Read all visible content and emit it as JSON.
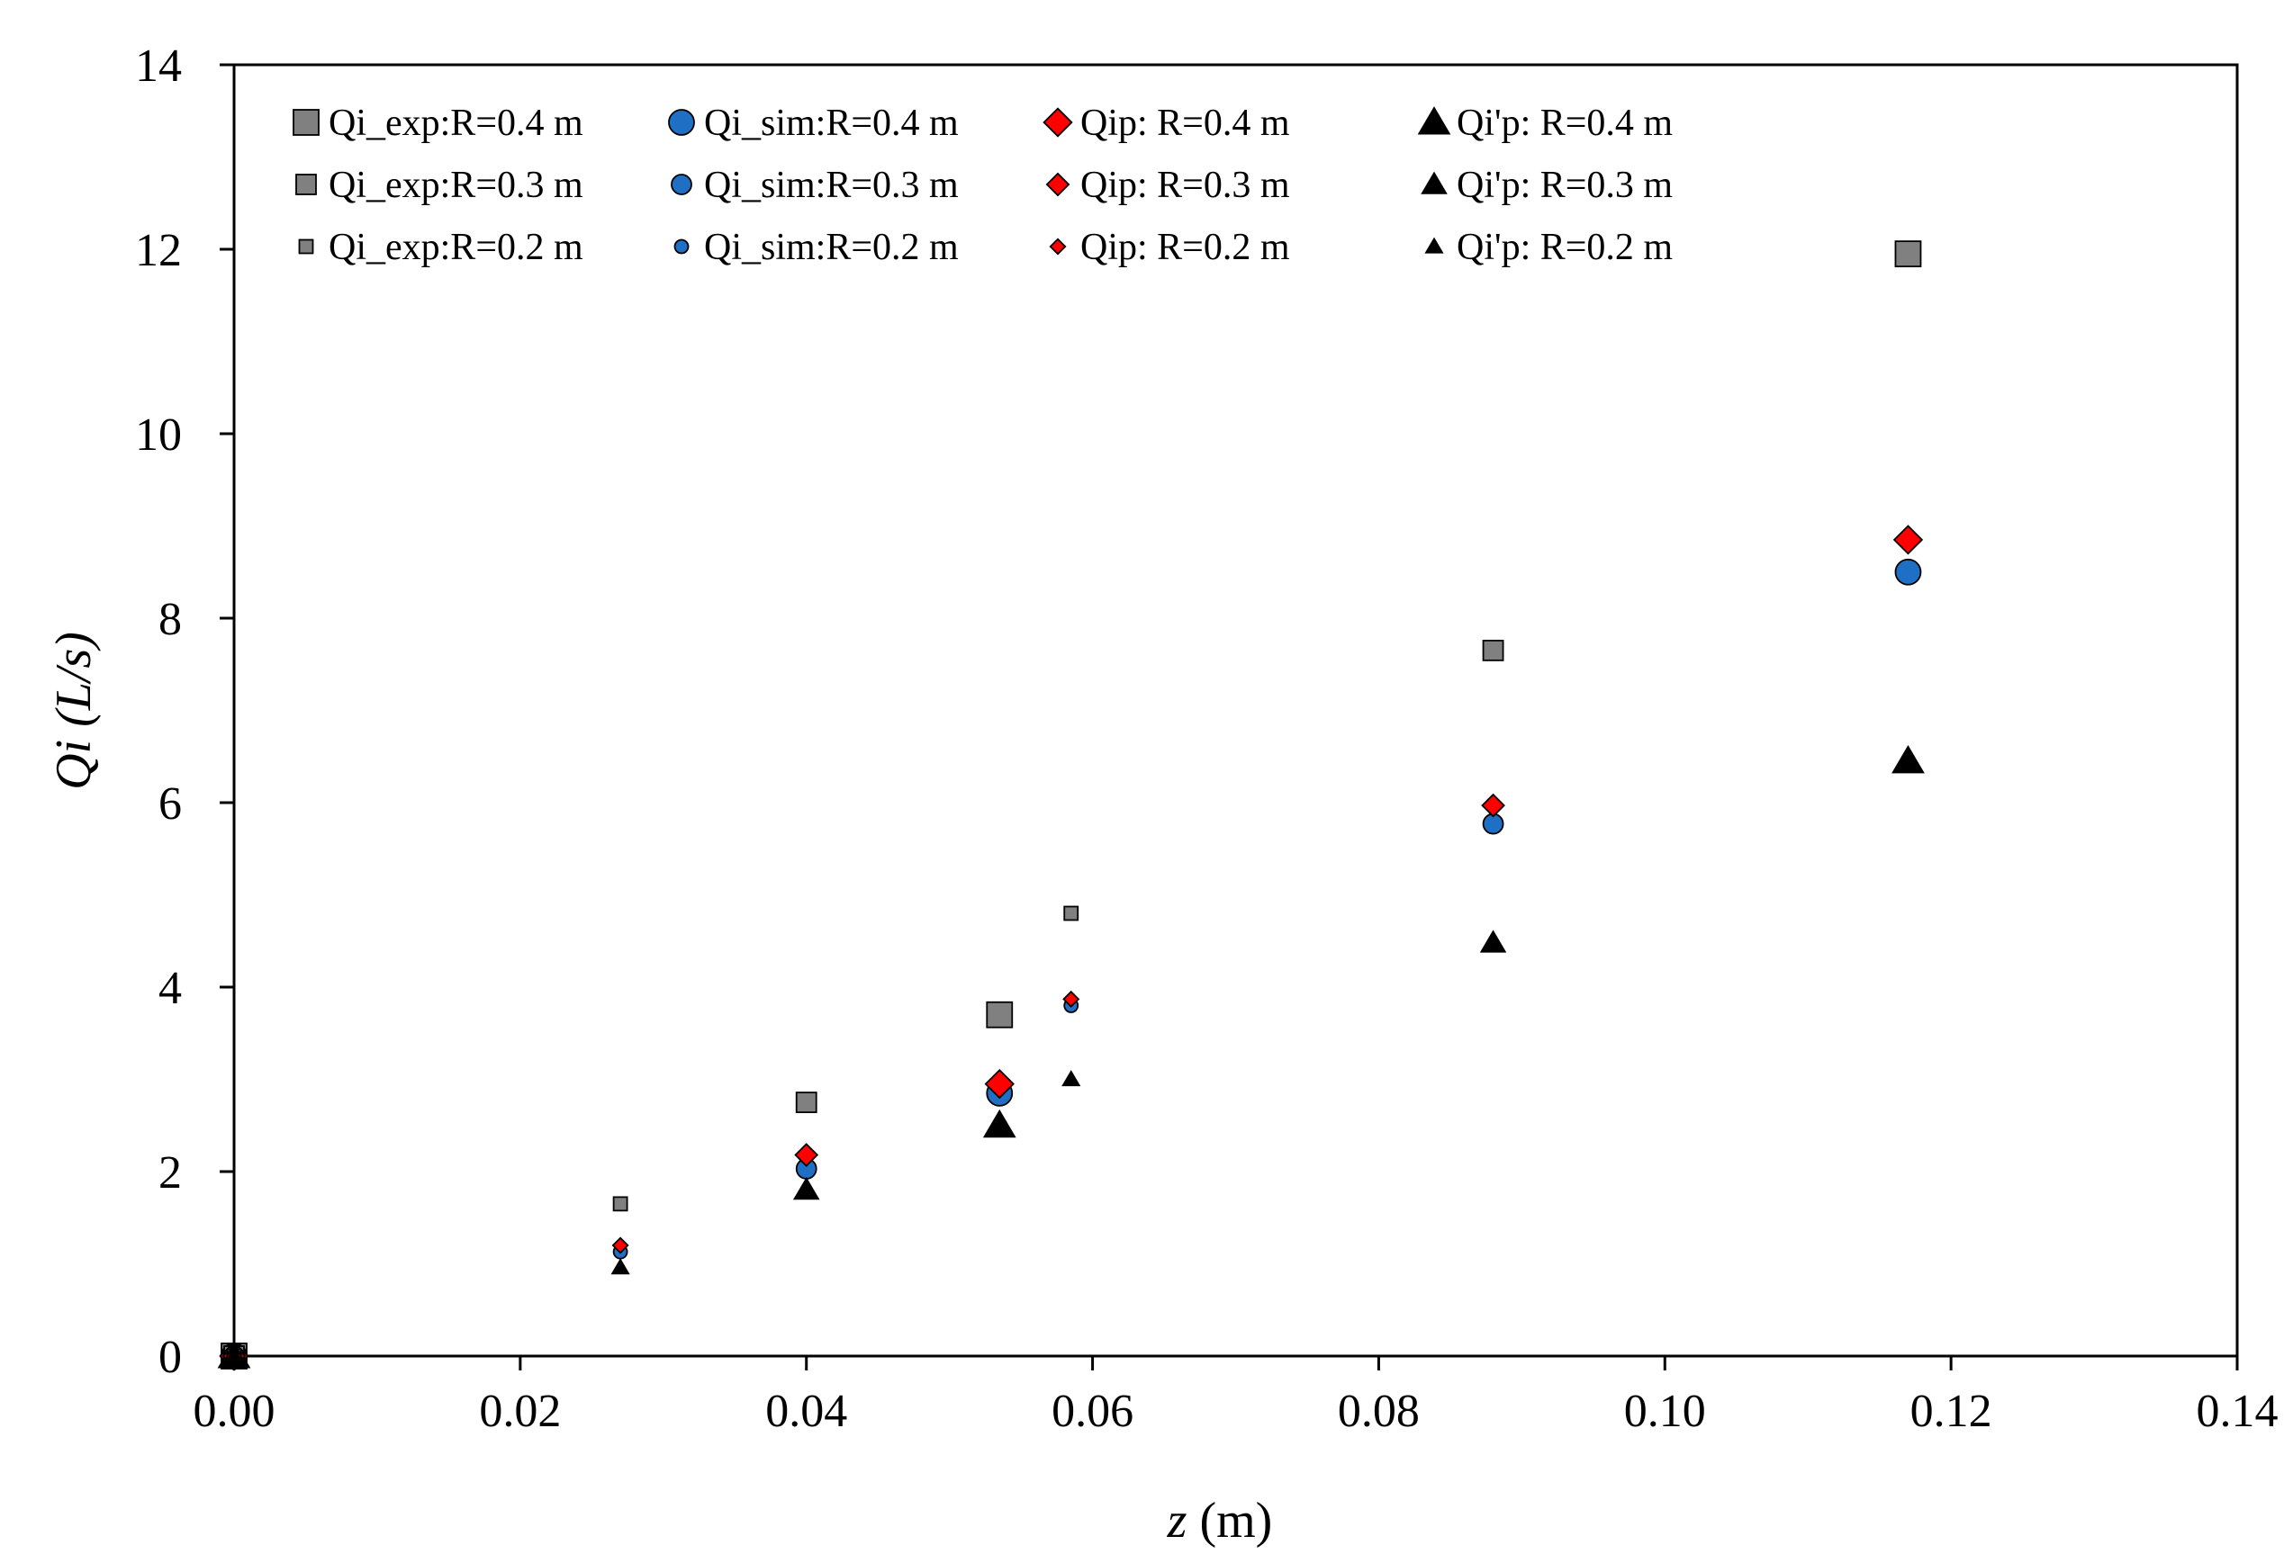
{
  "chart_data": {
    "type": "scatter",
    "title": "",
    "xlabel_main": "z",
    "xlabel_unit": " (m)",
    "ylabel_main": "Qi",
    "ylabel_unit": " (L/s)",
    "xlim": [
      0,
      0.14
    ],
    "ylim": [
      0,
      14
    ],
    "xticks": [
      0,
      0.02,
      0.04,
      0.06,
      0.08,
      0.1,
      0.12,
      0.14
    ],
    "xtick_labels": [
      "0.00",
      "0.02",
      "0.04",
      "0.06",
      "0.08",
      "0.10",
      "0.12",
      "0.14"
    ],
    "yticks": [
      0,
      2,
      4,
      6,
      8,
      10,
      12,
      14
    ],
    "ytick_labels": [
      "0",
      "2",
      "4",
      "6",
      "8",
      "10",
      "12",
      "14"
    ],
    "grid": false,
    "legend_position": "top-left",
    "colors": {
      "exp": "#808080",
      "sim": "#1f6fc5",
      "ip": "#ff0000",
      "pp": "#000000",
      "stroke": "#000000"
    },
    "series": [
      {
        "name": "Qi_exp:R=0.4 m",
        "marker": "square",
        "size": "large",
        "color": "#808080",
        "points": [
          [
            0,
            0
          ],
          [
            0.0535,
            3.7
          ],
          [
            0.117,
            11.95
          ]
        ]
      },
      {
        "name": "Qi_sim:R=0.4 m",
        "marker": "circle",
        "size": "large",
        "color": "#1f6fc5",
        "points": [
          [
            0,
            0
          ],
          [
            0.0535,
            2.85
          ],
          [
            0.117,
            8.5
          ]
        ]
      },
      {
        "name": "Qip: R=0.4 m",
        "marker": "diamond",
        "size": "large",
        "color": "#ff0000",
        "points": [
          [
            0,
            0
          ],
          [
            0.0535,
            2.95
          ],
          [
            0.117,
            8.85
          ]
        ]
      },
      {
        "name": "Qi'p: R=0.4 m",
        "marker": "triangle",
        "size": "large",
        "color": "#000000",
        "points": [
          [
            0,
            0
          ],
          [
            0.0535,
            2.5
          ],
          [
            0.117,
            6.45
          ]
        ]
      },
      {
        "name": "Qi_exp:R=0.3 m",
        "marker": "square",
        "size": "medium",
        "color": "#808080",
        "points": [
          [
            0,
            0
          ],
          [
            0.04,
            2.75
          ],
          [
            0.088,
            7.65
          ]
        ]
      },
      {
        "name": "Qi_sim:R=0.3 m",
        "marker": "circle",
        "size": "medium",
        "color": "#1f6fc5",
        "points": [
          [
            0,
            0
          ],
          [
            0.04,
            2.03
          ],
          [
            0.088,
            5.77
          ]
        ]
      },
      {
        "name": "Qip: R=0.3 m",
        "marker": "diamond",
        "size": "medium",
        "color": "#ff0000",
        "points": [
          [
            0,
            0
          ],
          [
            0.04,
            2.18
          ],
          [
            0.088,
            5.97
          ]
        ]
      },
      {
        "name": "Qi'p: R=0.3 m",
        "marker": "triangle",
        "size": "medium",
        "color": "#000000",
        "points": [
          [
            0,
            0
          ],
          [
            0.04,
            1.8
          ],
          [
            0.088,
            4.48
          ]
        ]
      },
      {
        "name": "Qi_exp:R=0.2 m",
        "marker": "square",
        "size": "small",
        "color": "#808080",
        "points": [
          [
            0,
            0
          ],
          [
            0.027,
            1.65
          ],
          [
            0.0585,
            4.8
          ]
        ]
      },
      {
        "name": "Qi_sim:R=0.2 m",
        "marker": "circle",
        "size": "small",
        "color": "#1f6fc5",
        "points": [
          [
            0,
            0
          ],
          [
            0.027,
            1.13
          ],
          [
            0.0585,
            3.8
          ]
        ]
      },
      {
        "name": "Qip: R=0.2 m",
        "marker": "diamond",
        "size": "small",
        "color": "#ff0000",
        "points": [
          [
            0,
            0
          ],
          [
            0.027,
            1.2
          ],
          [
            0.0585,
            3.87
          ]
        ]
      },
      {
        "name": "Qi'p: R=0.2 m",
        "marker": "triangle",
        "size": "small",
        "color": "#000000",
        "points": [
          [
            0,
            0
          ],
          [
            0.027,
            0.96
          ],
          [
            0.0585,
            3.0
          ]
        ]
      }
    ]
  }
}
